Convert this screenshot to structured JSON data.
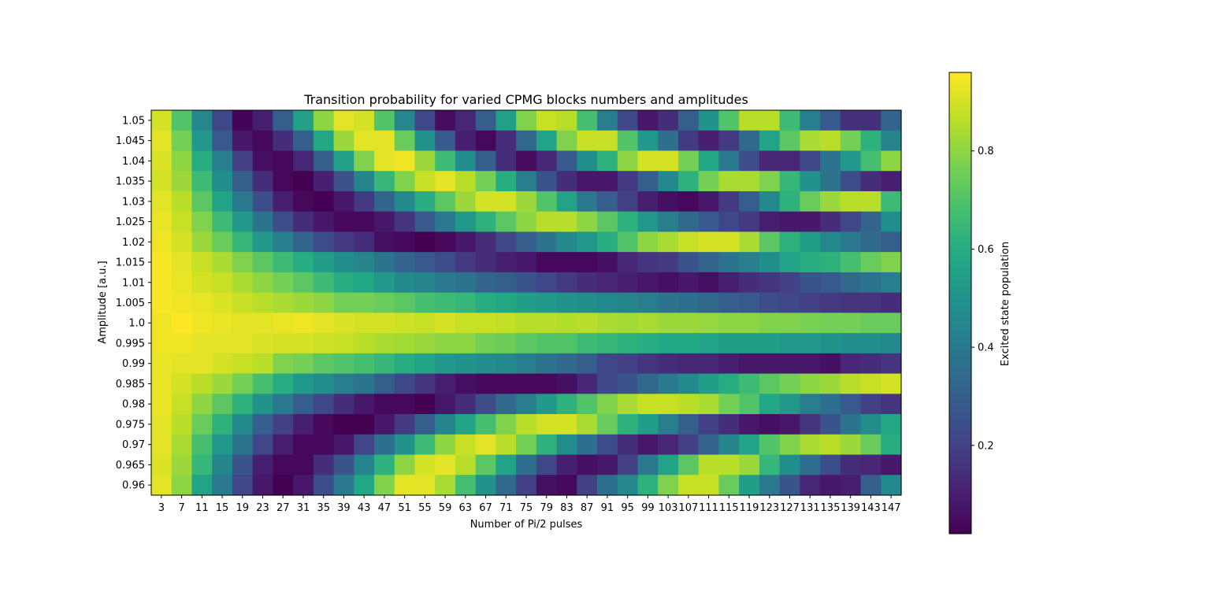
{
  "chart_data": {
    "type": "heatmap",
    "title": "Transition probability for varied CPMG blocks numbers and amplitudes",
    "xlabel": "Number of Pi/2 pulses",
    "ylabel": "Amplitude [a.u.]",
    "colorbar_label": "Excited state population",
    "colormap": "viridis",
    "value_range": [
      0.02,
      0.96
    ],
    "colorbar_ticks": [
      0.2,
      0.4,
      0.6,
      0.8
    ],
    "colorbar_tick_labels": [
      "0.2",
      "0.4",
      "0.6",
      "0.8"
    ],
    "x": [
      "3",
      "7",
      "11",
      "15",
      "19",
      "23",
      "27",
      "31",
      "35",
      "39",
      "43",
      "47",
      "51",
      "55",
      "59",
      "63",
      "67",
      "71",
      "75",
      "79",
      "83",
      "87",
      "91",
      "95",
      "99",
      "103",
      "107",
      "111",
      "115",
      "119",
      "123",
      "127",
      "131",
      "135",
      "139",
      "143",
      "147"
    ],
    "y": [
      "1.05",
      "1.045",
      "1.04",
      "1.035",
      "1.03",
      "1.025",
      "1.02",
      "1.015",
      "1.01",
      "1.005",
      "1.0",
      "0.995",
      "0.99",
      "0.985",
      "0.98",
      "0.975",
      "0.97",
      "0.965",
      "0.96"
    ],
    "values": [
      [
        0.9,
        0.7,
        0.45,
        0.22,
        0.03,
        0.1,
        0.3,
        0.55,
        0.8,
        0.92,
        0.9,
        0.7,
        0.45,
        0.22,
        0.05,
        0.12,
        0.3,
        0.55,
        0.78,
        0.88,
        0.86,
        0.68,
        0.42,
        0.22,
        0.08,
        0.14,
        0.3,
        0.5,
        0.7,
        0.86,
        0.86,
        0.66,
        0.42,
        0.28,
        0.15,
        0.15,
        0.32
      ],
      [
        0.92,
        0.76,
        0.52,
        0.28,
        0.08,
        0.04,
        0.14,
        0.3,
        0.58,
        0.82,
        0.92,
        0.92,
        0.74,
        0.5,
        0.28,
        0.1,
        0.04,
        0.14,
        0.34,
        0.56,
        0.78,
        0.88,
        0.88,
        0.7,
        0.52,
        0.36,
        0.18,
        0.1,
        0.18,
        0.34,
        0.56,
        0.72,
        0.84,
        0.86,
        0.76,
        0.62,
        0.44
      ],
      [
        0.91,
        0.8,
        0.6,
        0.42,
        0.2,
        0.06,
        0.04,
        0.12,
        0.3,
        0.55,
        0.78,
        0.92,
        0.94,
        0.82,
        0.66,
        0.48,
        0.3,
        0.14,
        0.05,
        0.12,
        0.28,
        0.48,
        0.62,
        0.8,
        0.9,
        0.9,
        0.76,
        0.58,
        0.4,
        0.24,
        0.12,
        0.12,
        0.22,
        0.38,
        0.52,
        0.68,
        0.8
      ],
      [
        0.9,
        0.82,
        0.66,
        0.48,
        0.3,
        0.14,
        0.04,
        0.02,
        0.1,
        0.25,
        0.44,
        0.64,
        0.78,
        0.88,
        0.92,
        0.86,
        0.76,
        0.6,
        0.42,
        0.26,
        0.14,
        0.08,
        0.08,
        0.18,
        0.3,
        0.46,
        0.62,
        0.76,
        0.84,
        0.84,
        0.78,
        0.64,
        0.5,
        0.38,
        0.24,
        0.14,
        0.1
      ],
      [
        0.92,
        0.86,
        0.72,
        0.56,
        0.4,
        0.24,
        0.1,
        0.04,
        0.02,
        0.08,
        0.18,
        0.32,
        0.46,
        0.6,
        0.72,
        0.82,
        0.9,
        0.9,
        0.82,
        0.7,
        0.56,
        0.4,
        0.3,
        0.2,
        0.1,
        0.06,
        0.04,
        0.08,
        0.18,
        0.3,
        0.46,
        0.62,
        0.74,
        0.82,
        0.86,
        0.86,
        0.66
      ],
      [
        0.93,
        0.88,
        0.78,
        0.66,
        0.52,
        0.38,
        0.24,
        0.14,
        0.08,
        0.04,
        0.04,
        0.08,
        0.16,
        0.28,
        0.4,
        0.52,
        0.62,
        0.72,
        0.8,
        0.86,
        0.86,
        0.8,
        0.72,
        0.62,
        0.52,
        0.42,
        0.34,
        0.28,
        0.22,
        0.18,
        0.1,
        0.08,
        0.08,
        0.14,
        0.22,
        0.32,
        0.48
      ],
      [
        0.94,
        0.9,
        0.82,
        0.74,
        0.64,
        0.52,
        0.42,
        0.32,
        0.24,
        0.18,
        0.14,
        0.06,
        0.04,
        0.02,
        0.04,
        0.08,
        0.14,
        0.22,
        0.3,
        0.38,
        0.46,
        0.52,
        0.6,
        0.7,
        0.8,
        0.84,
        0.88,
        0.9,
        0.9,
        0.84,
        0.72,
        0.62,
        0.54,
        0.46,
        0.4,
        0.34,
        0.3
      ],
      [
        0.95,
        0.92,
        0.88,
        0.84,
        0.78,
        0.72,
        0.66,
        0.6,
        0.54,
        0.48,
        0.44,
        0.38,
        0.32,
        0.28,
        0.24,
        0.18,
        0.14,
        0.1,
        0.08,
        0.04,
        0.04,
        0.04,
        0.06,
        0.12,
        0.16,
        0.18,
        0.26,
        0.32,
        0.38,
        0.42,
        0.48,
        0.56,
        0.6,
        0.62,
        0.68,
        0.74,
        0.78
      ],
      [
        0.95,
        0.93,
        0.9,
        0.88,
        0.84,
        0.8,
        0.76,
        0.72,
        0.66,
        0.6,
        0.58,
        0.52,
        0.46,
        0.44,
        0.4,
        0.38,
        0.32,
        0.3,
        0.26,
        0.22,
        0.18,
        0.14,
        0.12,
        0.1,
        0.08,
        0.06,
        0.08,
        0.06,
        0.1,
        0.14,
        0.16,
        0.2,
        0.26,
        0.28,
        0.34,
        0.38,
        0.42
      ],
      [
        0.95,
        0.94,
        0.93,
        0.91,
        0.88,
        0.86,
        0.84,
        0.82,
        0.8,
        0.76,
        0.76,
        0.74,
        0.72,
        0.68,
        0.66,
        0.64,
        0.6,
        0.58,
        0.54,
        0.52,
        0.5,
        0.48,
        0.46,
        0.44,
        0.42,
        0.38,
        0.36,
        0.34,
        0.3,
        0.28,
        0.24,
        0.22,
        0.2,
        0.18,
        0.16,
        0.16,
        0.14
      ],
      [
        0.94,
        0.96,
        0.94,
        0.93,
        0.92,
        0.92,
        0.93,
        0.94,
        0.92,
        0.91,
        0.9,
        0.9,
        0.89,
        0.88,
        0.9,
        0.88,
        0.88,
        0.87,
        0.86,
        0.86,
        0.85,
        0.86,
        0.84,
        0.83,
        0.84,
        0.82,
        0.82,
        0.81,
        0.8,
        0.8,
        0.78,
        0.78,
        0.77,
        0.76,
        0.76,
        0.74,
        0.74
      ],
      [
        0.94,
        0.94,
        0.92,
        0.92,
        0.92,
        0.91,
        0.9,
        0.9,
        0.89,
        0.88,
        0.86,
        0.84,
        0.83,
        0.82,
        0.8,
        0.8,
        0.76,
        0.75,
        0.72,
        0.7,
        0.7,
        0.66,
        0.64,
        0.62,
        0.6,
        0.58,
        0.58,
        0.56,
        0.54,
        0.54,
        0.54,
        0.52,
        0.52,
        0.5,
        0.48,
        0.48,
        0.46
      ],
      [
        0.93,
        0.92,
        0.92,
        0.9,
        0.88,
        0.86,
        0.78,
        0.76,
        0.72,
        0.7,
        0.68,
        0.64,
        0.6,
        0.56,
        0.52,
        0.5,
        0.48,
        0.46,
        0.42,
        0.38,
        0.34,
        0.3,
        0.22,
        0.2,
        0.16,
        0.14,
        0.12,
        0.12,
        0.1,
        0.08,
        0.08,
        0.08,
        0.08,
        0.06,
        0.12,
        0.14,
        0.16
      ],
      [
        0.93,
        0.9,
        0.86,
        0.82,
        0.76,
        0.68,
        0.6,
        0.52,
        0.48,
        0.42,
        0.38,
        0.3,
        0.22,
        0.16,
        0.1,
        0.06,
        0.04,
        0.04,
        0.04,
        0.04,
        0.06,
        0.12,
        0.22,
        0.26,
        0.34,
        0.4,
        0.46,
        0.54,
        0.6,
        0.66,
        0.72,
        0.76,
        0.8,
        0.82,
        0.86,
        0.88,
        0.9
      ],
      [
        0.93,
        0.88,
        0.8,
        0.72,
        0.62,
        0.5,
        0.4,
        0.3,
        0.22,
        0.14,
        0.08,
        0.04,
        0.04,
        0.02,
        0.08,
        0.14,
        0.24,
        0.34,
        0.42,
        0.52,
        0.62,
        0.7,
        0.78,
        0.84,
        0.88,
        0.88,
        0.86,
        0.84,
        0.76,
        0.7,
        0.58,
        0.52,
        0.42,
        0.36,
        0.28,
        0.2,
        0.16
      ],
      [
        0.92,
        0.86,
        0.74,
        0.62,
        0.46,
        0.3,
        0.2,
        0.1,
        0.04,
        0.02,
        0.02,
        0.08,
        0.18,
        0.3,
        0.44,
        0.56,
        0.68,
        0.78,
        0.86,
        0.9,
        0.9,
        0.84,
        0.74,
        0.62,
        0.54,
        0.42,
        0.3,
        0.2,
        0.14,
        0.08,
        0.06,
        0.08,
        0.16,
        0.26,
        0.38,
        0.48,
        0.58
      ],
      [
        0.92,
        0.84,
        0.68,
        0.52,
        0.38,
        0.22,
        0.1,
        0.04,
        0.04,
        0.08,
        0.22,
        0.36,
        0.5,
        0.66,
        0.8,
        0.88,
        0.92,
        0.86,
        0.76,
        0.62,
        0.48,
        0.36,
        0.24,
        0.14,
        0.08,
        0.12,
        0.2,
        0.32,
        0.44,
        0.56,
        0.7,
        0.78,
        0.84,
        0.86,
        0.82,
        0.74,
        0.6
      ],
      [
        0.91,
        0.82,
        0.64,
        0.44,
        0.26,
        0.1,
        0.04,
        0.04,
        0.14,
        0.26,
        0.44,
        0.62,
        0.8,
        0.9,
        0.92,
        0.86,
        0.72,
        0.56,
        0.36,
        0.22,
        0.1,
        0.06,
        0.08,
        0.2,
        0.4,
        0.56,
        0.72,
        0.86,
        0.86,
        0.82,
        0.64,
        0.48,
        0.36,
        0.24,
        0.14,
        0.12,
        0.08
      ],
      [
        0.92,
        0.8,
        0.56,
        0.4,
        0.22,
        0.08,
        0.02,
        0.08,
        0.24,
        0.4,
        0.58,
        0.78,
        0.92,
        0.92,
        0.84,
        0.68,
        0.5,
        0.34,
        0.2,
        0.06,
        0.04,
        0.2,
        0.36,
        0.46,
        0.62,
        0.78,
        0.88,
        0.88,
        0.74,
        0.54,
        0.4,
        0.26,
        0.12,
        0.08,
        0.1,
        0.3,
        0.46
      ]
    ]
  }
}
